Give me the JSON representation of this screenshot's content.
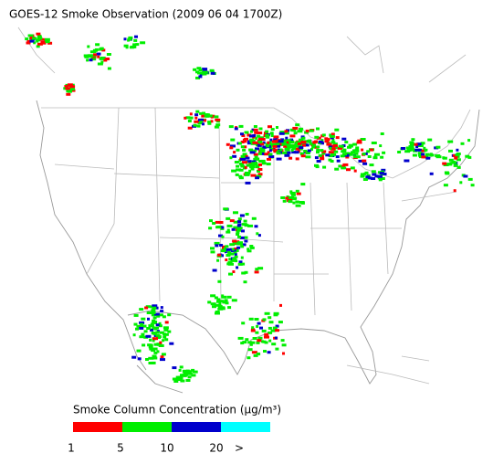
{
  "title": "GOES-12 Smoke Observation (2009 06 04  1700Z)",
  "legend": {
    "label": "Smoke Column Concentration (μg/m³)",
    "colors": [
      "#ff0000",
      "#00ee00",
      "#0000cc",
      "#00ffff"
    ],
    "ticks": [
      "1",
      "5",
      "10",
      "20",
      ">"
    ]
  }
}
